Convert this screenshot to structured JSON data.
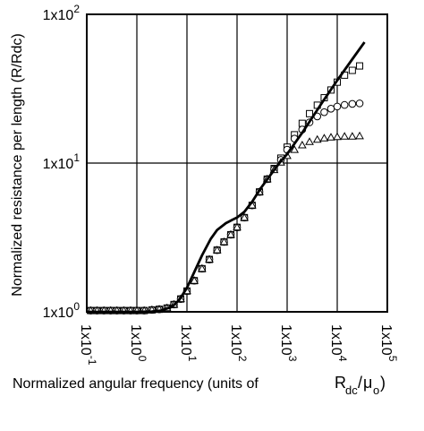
{
  "chart_data": {
    "type": "scatter",
    "title": "",
    "xlabel": "Normalized angular frequency (units of",
    "xlabel_units": {
      "base": "R",
      "sub1": "dc",
      "slash": "/",
      "mu": "μ",
      "sub2": "o",
      "close": ")"
    },
    "ylabel": "Normalized resistance per length (R/Rdc)",
    "x_scale": "log",
    "y_scale": "log",
    "xlim": [
      0.1,
      100000
    ],
    "ylim": [
      1,
      100
    ],
    "grid": true,
    "x_ticks": [
      {
        "value": 0.1,
        "mant": "1x10",
        "exp": "-1"
      },
      {
        "value": 1,
        "mant": "1x10",
        "exp": "0"
      },
      {
        "value": 10,
        "mant": "1x10",
        "exp": "1"
      },
      {
        "value": 100,
        "mant": "1x10",
        "exp": "2"
      },
      {
        "value": 1000,
        "mant": "1x10",
        "exp": "3"
      },
      {
        "value": 10000,
        "mant": "1x10",
        "exp": "4"
      },
      {
        "value": 100000,
        "mant": "1x10",
        "exp": "5"
      }
    ],
    "y_ticks": [
      {
        "value": 1,
        "mant": "1x10",
        "exp": "0"
      },
      {
        "value": 10,
        "mant": "1x10",
        "exp": "1"
      },
      {
        "value": 100,
        "mant": "1x10",
        "exp": "2"
      }
    ],
    "series": [
      {
        "marker": "square",
        "x": [
          0.12,
          0.16,
          0.22,
          0.3,
          0.4,
          0.55,
          0.75,
          1,
          1.4,
          2,
          2.8,
          4,
          5.5,
          7.5,
          10,
          14,
          20,
          28,
          40,
          55,
          75,
          100,
          140,
          200,
          280,
          400,
          550,
          750,
          1000,
          1400,
          2000,
          2800,
          4000,
          5500,
          7500,
          10000,
          14000,
          20000,
          28000
        ],
        "y": [
          1.02,
          1.02,
          1.02,
          1.02,
          1.02,
          1.02,
          1.02,
          1.02,
          1.02,
          1.03,
          1.04,
          1.06,
          1.12,
          1.22,
          1.38,
          1.62,
          1.95,
          2.25,
          2.6,
          2.95,
          3.3,
          3.7,
          4.3,
          5.2,
          6.4,
          7.8,
          9.2,
          10.8,
          12.8,
          15.5,
          18.5,
          21.5,
          24.5,
          27.5,
          31,
          35,
          39,
          42,
          45
        ]
      },
      {
        "marker": "circle",
        "x": [
          0.12,
          0.16,
          0.22,
          0.3,
          0.4,
          0.55,
          0.75,
          1,
          1.4,
          2,
          2.8,
          4,
          5.5,
          7.5,
          10,
          14,
          20,
          28,
          40,
          55,
          75,
          100,
          140,
          200,
          280,
          400,
          550,
          750,
          1000,
          1400,
          2000,
          2800,
          4000,
          5500,
          7500,
          10000,
          14000,
          20000,
          28000
        ],
        "y": [
          1.02,
          1.02,
          1.02,
          1.02,
          1.02,
          1.02,
          1.02,
          1.02,
          1.02,
          1.03,
          1.04,
          1.06,
          1.12,
          1.22,
          1.38,
          1.62,
          1.95,
          2.25,
          2.6,
          2.95,
          3.3,
          3.7,
          4.3,
          5.2,
          6.4,
          7.8,
          9.1,
          10.5,
          12.3,
          14.6,
          16.8,
          18.8,
          20.6,
          22,
          23.2,
          24,
          24.6,
          25,
          25.2
        ]
      },
      {
        "marker": "triangle",
        "x": [
          0.12,
          0.16,
          0.22,
          0.3,
          0.4,
          0.55,
          0.75,
          1,
          1.4,
          2,
          2.8,
          4,
          5.5,
          7.5,
          10,
          14,
          20,
          28,
          40,
          55,
          75,
          100,
          140,
          200,
          280,
          400,
          550,
          750,
          1000,
          1400,
          2000,
          2800,
          4000,
          5500,
          7500,
          10000,
          14000,
          20000,
          28000
        ],
        "y": [
          1.02,
          1.02,
          1.02,
          1.02,
          1.02,
          1.02,
          1.02,
          1.02,
          1.02,
          1.03,
          1.04,
          1.06,
          1.12,
          1.22,
          1.38,
          1.62,
          1.95,
          2.25,
          2.6,
          2.95,
          3.3,
          3.7,
          4.3,
          5.2,
          6.4,
          7.8,
          9,
          10.1,
          11.2,
          12.3,
          13.2,
          13.9,
          14.4,
          14.7,
          14.9,
          15,
          15.1,
          15.1,
          15.2
        ]
      },
      {
        "marker": "line",
        "x": [
          0.1,
          0.3,
          1,
          2,
          3,
          5,
          7,
          10,
          14,
          20,
          30,
          40,
          60,
          80,
          100,
          140,
          200,
          300,
          500,
          700,
          1000,
          2000,
          5000,
          10000,
          20000,
          35000
        ],
        "y": [
          1,
          1,
          1,
          1.005,
          1.02,
          1.08,
          1.2,
          1.45,
          1.85,
          2.4,
          3.1,
          3.55,
          3.95,
          4.15,
          4.3,
          4.7,
          5.5,
          6.8,
          8.6,
          10,
          11.5,
          16,
          25.5,
          36,
          50,
          65
        ]
      }
    ]
  }
}
